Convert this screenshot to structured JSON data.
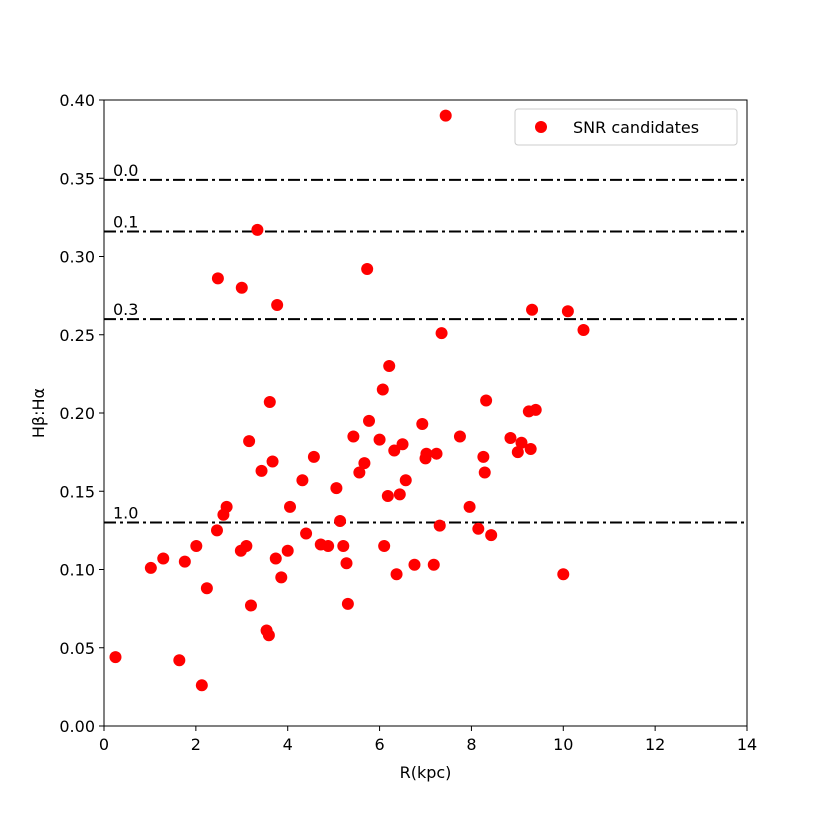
{
  "colors": {
    "points": "#ff0000",
    "reference_lines": "#000000",
    "background": "#ffffff",
    "legend_border": "#cccccc"
  },
  "chart_data": {
    "type": "scatter",
    "title": "",
    "xlabel": "R(kpc)",
    "ylabel": "Hβ:Hα",
    "xlim": [
      0,
      14
    ],
    "ylim": [
      0.0,
      0.4
    ],
    "xticks": [
      0,
      2,
      4,
      6,
      8,
      10,
      12,
      14
    ],
    "xtick_labels": [
      "0",
      "2",
      "4",
      "6",
      "8",
      "10",
      "12",
      "14"
    ],
    "yticks": [
      0.0,
      0.05,
      0.1,
      0.15,
      0.2,
      0.25,
      0.3,
      0.35,
      0.4
    ],
    "ytick_labels": [
      "0.00",
      "0.05",
      "0.10",
      "0.15",
      "0.20",
      "0.25",
      "0.30",
      "0.35",
      "0.40"
    ],
    "grid": false,
    "legend": {
      "position": "top-right",
      "entries": [
        "SNR candidates"
      ]
    },
    "reference_lines": [
      {
        "y": 0.349,
        "label": "0.0",
        "style": "dashdot"
      },
      {
        "y": 0.316,
        "label": "0.1",
        "style": "dashdot"
      },
      {
        "y": 0.26,
        "label": "0.3",
        "style": "dashdot"
      },
      {
        "y": 0.13,
        "label": "1.0",
        "style": "dashdot"
      }
    ],
    "series": [
      {
        "name": "SNR candidates",
        "marker": "circle",
        "points": [
          [
            0.25,
            0.044
          ],
          [
            1.02,
            0.101
          ],
          [
            1.29,
            0.107
          ],
          [
            1.64,
            0.042
          ],
          [
            1.76,
            0.105
          ],
          [
            2.01,
            0.115
          ],
          [
            2.13,
            0.026
          ],
          [
            2.24,
            0.088
          ],
          [
            2.46,
            0.125
          ],
          [
            2.48,
            0.286
          ],
          [
            2.6,
            0.135
          ],
          [
            2.67,
            0.14
          ],
          [
            2.98,
            0.112
          ],
          [
            3.0,
            0.28
          ],
          [
            3.1,
            0.115
          ],
          [
            3.16,
            0.182
          ],
          [
            3.2,
            0.077
          ],
          [
            3.34,
            0.317
          ],
          [
            3.43,
            0.163
          ],
          [
            3.54,
            0.061
          ],
          [
            3.59,
            0.058
          ],
          [
            3.61,
            0.207
          ],
          [
            3.67,
            0.169
          ],
          [
            3.74,
            0.107
          ],
          [
            3.77,
            0.269
          ],
          [
            3.86,
            0.095
          ],
          [
            4.0,
            0.112
          ],
          [
            4.05,
            0.14
          ],
          [
            4.32,
            0.157
          ],
          [
            4.4,
            0.123
          ],
          [
            4.57,
            0.172
          ],
          [
            4.72,
            0.116
          ],
          [
            4.88,
            0.115
          ],
          [
            5.06,
            0.152
          ],
          [
            5.14,
            0.131
          ],
          [
            5.21,
            0.115
          ],
          [
            5.28,
            0.104
          ],
          [
            5.31,
            0.078
          ],
          [
            5.43,
            0.185
          ],
          [
            5.56,
            0.162
          ],
          [
            5.67,
            0.168
          ],
          [
            5.73,
            0.292
          ],
          [
            5.77,
            0.195
          ],
          [
            6.0,
            0.183
          ],
          [
            6.07,
            0.215
          ],
          [
            6.1,
            0.115
          ],
          [
            6.18,
            0.147
          ],
          [
            6.21,
            0.23
          ],
          [
            6.32,
            0.176
          ],
          [
            6.37,
            0.097
          ],
          [
            6.44,
            0.148
          ],
          [
            6.5,
            0.18
          ],
          [
            6.57,
            0.157
          ],
          [
            6.76,
            0.103
          ],
          [
            6.93,
            0.193
          ],
          [
            7.0,
            0.171
          ],
          [
            7.02,
            0.174
          ],
          [
            7.18,
            0.103
          ],
          [
            7.24,
            0.174
          ],
          [
            7.31,
            0.128
          ],
          [
            7.35,
            0.251
          ],
          [
            7.44,
            0.39
          ],
          [
            7.75,
            0.185
          ],
          [
            7.96,
            0.14
          ],
          [
            8.15,
            0.126
          ],
          [
            8.26,
            0.172
          ],
          [
            8.29,
            0.162
          ],
          [
            8.32,
            0.208
          ],
          [
            8.43,
            0.122
          ],
          [
            8.85,
            0.184
          ],
          [
            9.01,
            0.175
          ],
          [
            9.09,
            0.181
          ],
          [
            9.25,
            0.201
          ],
          [
            9.29,
            0.177
          ],
          [
            9.32,
            0.266
          ],
          [
            9.4,
            0.202
          ],
          [
            10.0,
            0.097
          ],
          [
            10.1,
            0.265
          ],
          [
            10.44,
            0.253
          ]
        ]
      }
    ]
  }
}
